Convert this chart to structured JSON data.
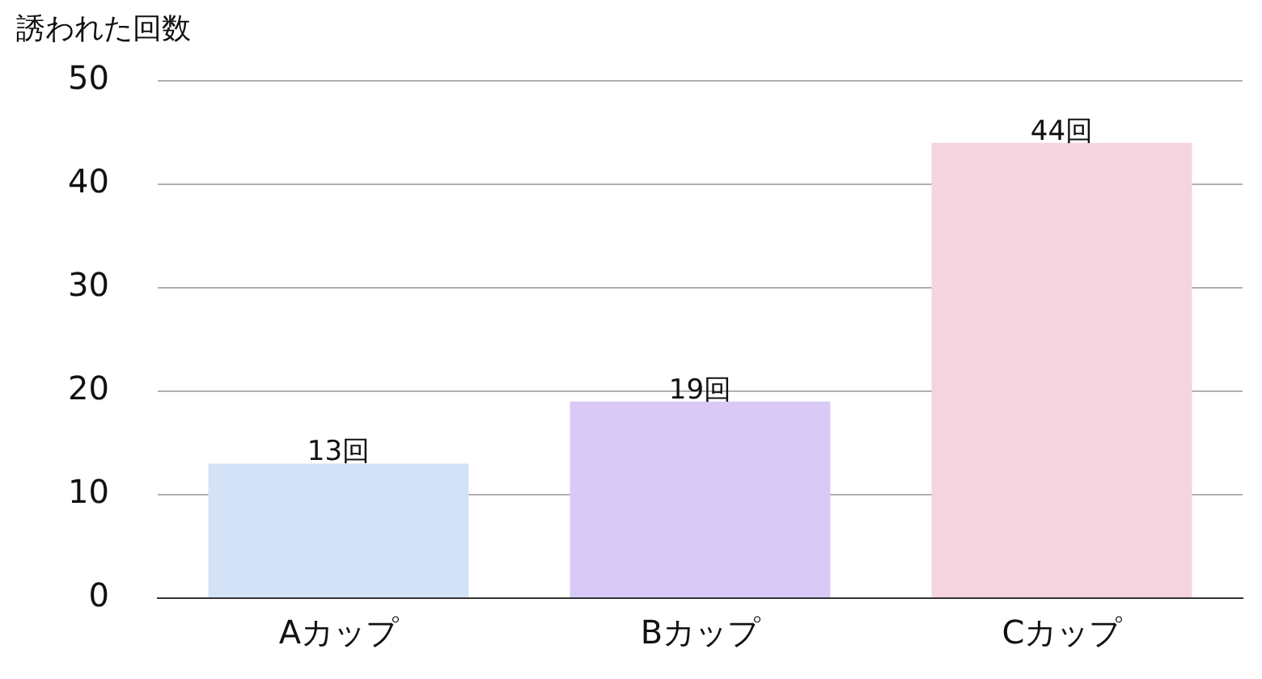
{
  "chart_data": {
    "type": "bar",
    "ylabel": "誘われた回数",
    "categories": [
      "Aカップ",
      "Bカップ",
      "Cカップ"
    ],
    "values": [
      13,
      19,
      44
    ],
    "value_labels": [
      "13回",
      "19回",
      "44回"
    ],
    "colors": [
      "#d4e2f8",
      "#d8c9f6",
      "#f5d3df"
    ],
    "ylim": [
      0,
      50
    ],
    "yticks": [
      0,
      10,
      20,
      30,
      40,
      50
    ],
    "grid": "y",
    "legend": false
  }
}
